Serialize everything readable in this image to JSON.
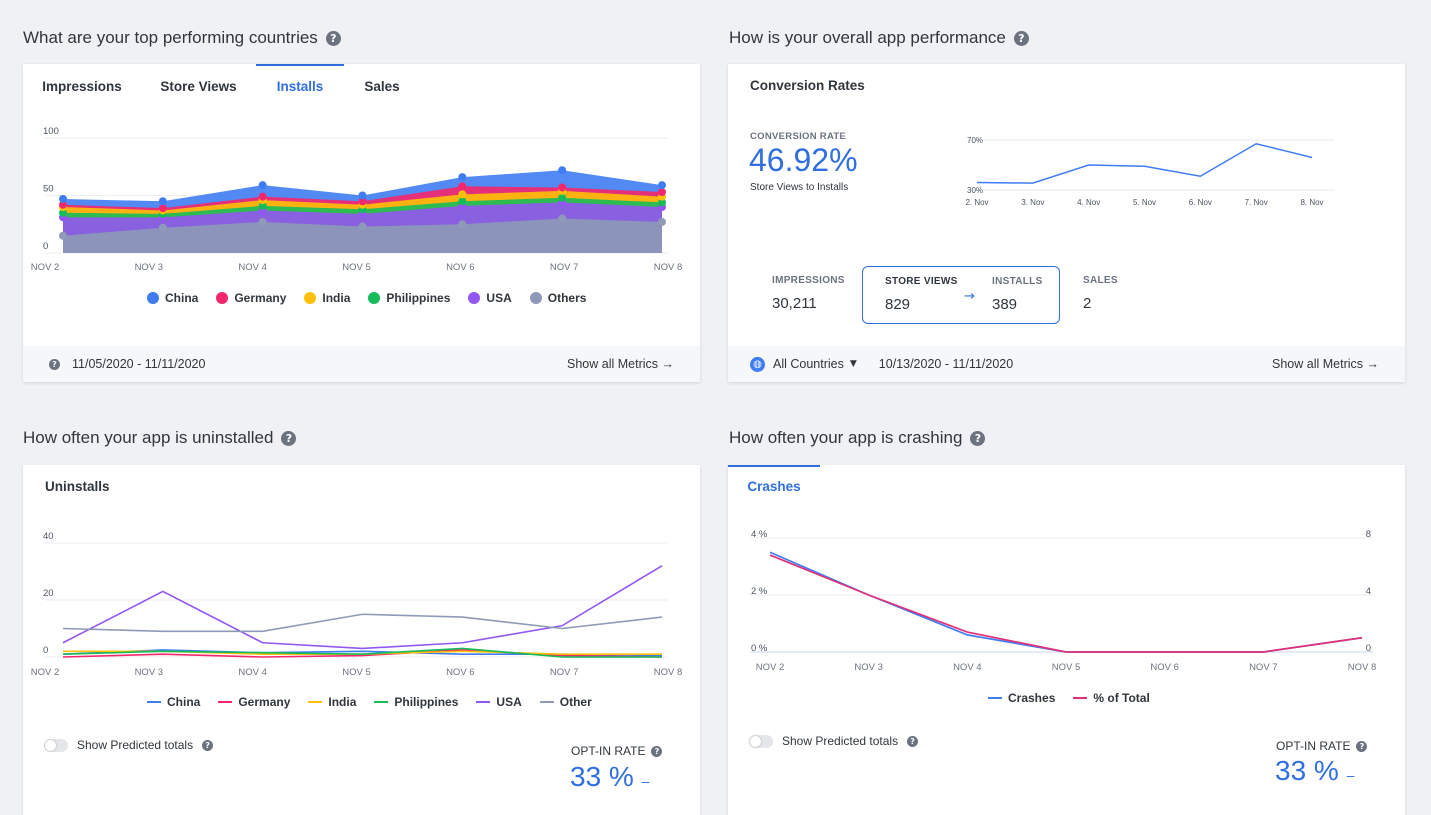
{
  "sections": {
    "countries": {
      "title": "What are your top performing countries"
    },
    "performance": {
      "title": "How is your overall app performance"
    },
    "uninstalled": {
      "title": "How often your app is uninstalled"
    },
    "crashing": {
      "title": "How often your app is crashing"
    }
  },
  "countries_card": {
    "tabs": [
      "Impressions",
      "Store Views",
      "Installs",
      "Sales"
    ],
    "active_tab": "Installs",
    "date_range": "11/05/2020 - 11/11/2020",
    "show_all": "Show all Metrics →"
  },
  "performance_card": {
    "header": "Conversion Rates",
    "conv_label": "CONVERSION RATE",
    "conv_value": "46.92%",
    "conv_sub": "Store Views to Installs",
    "metrics": {
      "impressions": {
        "label": "IMPRESSIONS",
        "value": "30,211"
      },
      "store_views": {
        "label": "STORE VIEWS",
        "value": "829"
      },
      "installs": {
        "label": "INSTALLS",
        "value": "389"
      },
      "sales": {
        "label": "SALES",
        "value": "2"
      }
    },
    "arrow": "→",
    "country_select": "All Countries",
    "date_range": "10/13/2020 - 11/11/2020",
    "show_all": "Show all Metrics →"
  },
  "uninstalls_card": {
    "header": "Uninstalls",
    "toggle_label": "Show Predicted totals",
    "opt_label": "OPT-IN RATE",
    "opt_value": "33 %",
    "opt_trend": "–"
  },
  "crashes_card": {
    "tab": "Crashes",
    "toggle_label": "Show Predicted totals",
    "opt_label": "OPT-IN RATE",
    "opt_value": "33 %",
    "opt_trend": "–"
  },
  "chart_data": [
    {
      "id": "installs",
      "type": "area",
      "stacked": true,
      "categories": [
        "NOV 2",
        "NOV 3",
        "NOV 4",
        "NOV 5",
        "NOV 6",
        "NOV 7",
        "NOV 8"
      ],
      "yticks": [
        "100",
        "50",
        "0"
      ],
      "ylim": [
        0,
        100
      ],
      "series": [
        {
          "name": "Others",
          "color": "#8e9ab7",
          "values": [
            15,
            22,
            27,
            23,
            25,
            30,
            27
          ]
        },
        {
          "name": "USA",
          "color": "#9257f0",
          "values": [
            16,
            9,
            10,
            11,
            16,
            14,
            13
          ]
        },
        {
          "name": "Philippines",
          "color": "#16bb5a",
          "values": [
            4,
            3,
            4,
            4,
            4,
            4,
            4
          ]
        },
        {
          "name": "India",
          "color": "#ffc107",
          "values": [
            5,
            3,
            5,
            4,
            6,
            6,
            5
          ]
        },
        {
          "name": "Germany",
          "color": "#f5276c",
          "values": [
            2,
            2,
            3,
            3,
            7,
            3,
            4
          ]
        },
        {
          "name": "China",
          "color": "#3f7cf2",
          "values": [
            5,
            6,
            10,
            5,
            8,
            15,
            6
          ]
        }
      ],
      "legend": [
        "China",
        "Germany",
        "India",
        "Philippines",
        "USA",
        "Others"
      ]
    },
    {
      "id": "conversion",
      "type": "line",
      "categories": [
        "2. Nov",
        "3. Nov",
        "4. Nov",
        "5. Nov",
        "6. Nov",
        "7. Nov",
        "8. Nov"
      ],
      "yticks": [
        "70%",
        "30%"
      ],
      "ylim": [
        30,
        70
      ],
      "series": [
        {
          "name": "Conversion Rate",
          "color": "#3f7cf2",
          "values": [
            36,
            35.5,
            50,
            49,
            41,
            67,
            56
          ]
        }
      ]
    },
    {
      "id": "uninstalls",
      "type": "line",
      "categories": [
        "NOV 2",
        "NOV 3",
        "NOV 4",
        "NOV 5",
        "NOV 6",
        "NOV 7",
        "NOV 8"
      ],
      "yticks": [
        "40",
        "20",
        "0"
      ],
      "ylim": [
        0,
        40
      ],
      "series": [
        {
          "name": "China",
          "color": "#3f7cf2",
          "values": [
            1,
            2.5,
            1.5,
            2,
            1,
            1,
            0.5
          ]
        },
        {
          "name": "Germany",
          "color": "#f5276c",
          "values": [
            0,
            1,
            0,
            0.5,
            2.5,
            0.5,
            0
          ]
        },
        {
          "name": "India",
          "color": "#ffc107",
          "values": [
            2,
            2,
            1,
            1,
            2,
            1,
            1
          ]
        },
        {
          "name": "Philippines",
          "color": "#16bb5a",
          "values": [
            1,
            2,
            1.5,
            1,
            3,
            0,
            0
          ]
        },
        {
          "name": "USA",
          "color": "#9257f0",
          "values": [
            5,
            23,
            5,
            3,
            5,
            11,
            32
          ]
        },
        {
          "name": "Other",
          "color": "#8e9ab7",
          "values": [
            10,
            9,
            9,
            15,
            14,
            10,
            14
          ]
        }
      ],
      "legend": [
        "China",
        "Germany",
        "India",
        "Philippines",
        "USA",
        "Other"
      ]
    },
    {
      "id": "crashes",
      "type": "line",
      "categories": [
        "NOV 2",
        "NOV 3",
        "NOV 4",
        "NOV 5",
        "NOV 6",
        "NOV 7",
        "NOV 8"
      ],
      "yticks_left": [
        "4 %",
        "2 %",
        "0 %"
      ],
      "yticks_right": [
        "8",
        "4",
        "0"
      ],
      "ylim": [
        0,
        4
      ],
      "series": [
        {
          "name": "Crashes",
          "color": "#3f7cf2",
          "values": [
            3.5,
            2,
            0.6,
            0,
            0,
            0,
            0.5
          ]
        },
        {
          "name": "% of Total",
          "color": "#e0307a",
          "values": [
            3.4,
            2,
            0.7,
            0,
            0,
            0,
            0.5
          ]
        }
      ],
      "legend": [
        "Crashes",
        "% of Total"
      ]
    }
  ]
}
